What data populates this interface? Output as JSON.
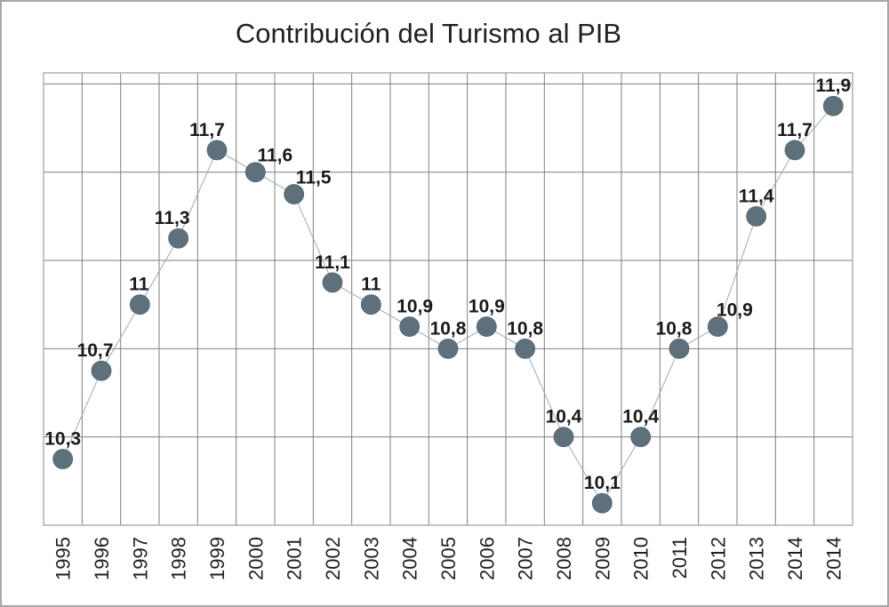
{
  "chart_data": {
    "type": "line",
    "title": "Contribución del Turismo al PIB",
    "xlabel": "",
    "ylabel": "",
    "categories": [
      "1995",
      "1996",
      "1997",
      "1998",
      "1999",
      "2000",
      "2001",
      "2002",
      "2003",
      "2004",
      "2005",
      "2006",
      "2007",
      "2008",
      "2009",
      "2010",
      "2011",
      "2012",
      "2013",
      "2014",
      "2014"
    ],
    "series": [
      {
        "name": "Contribución del Turismo al PIB",
        "values": [
          10.3,
          10.7,
          11,
          11.3,
          11.7,
          11.6,
          11.5,
          11.1,
          11,
          10.9,
          10.8,
          10.9,
          10.8,
          10.4,
          10.1,
          10.4,
          10.8,
          10.9,
          11.4,
          11.7,
          11.9
        ],
        "labels": [
          "10,3",
          "10,7",
          "11",
          "11,3",
          "11,7",
          "11,6",
          "11,5",
          "11,1",
          "11",
          "10,9",
          "10,8",
          "10,9",
          "10,8",
          "10,4",
          "10,1",
          "10,4",
          "10,8",
          "10,9",
          "11,4",
          "11,7",
          "11,9"
        ]
      }
    ],
    "ylim": [
      10.0,
      12.05
    ],
    "ygrid_step": 0.4,
    "grid": true,
    "legend": "none",
    "colors": {
      "marker": "#5e707c",
      "line": "#9aabb8",
      "grid": "#7f7f7f",
      "frame": "#a7a7a7"
    }
  }
}
